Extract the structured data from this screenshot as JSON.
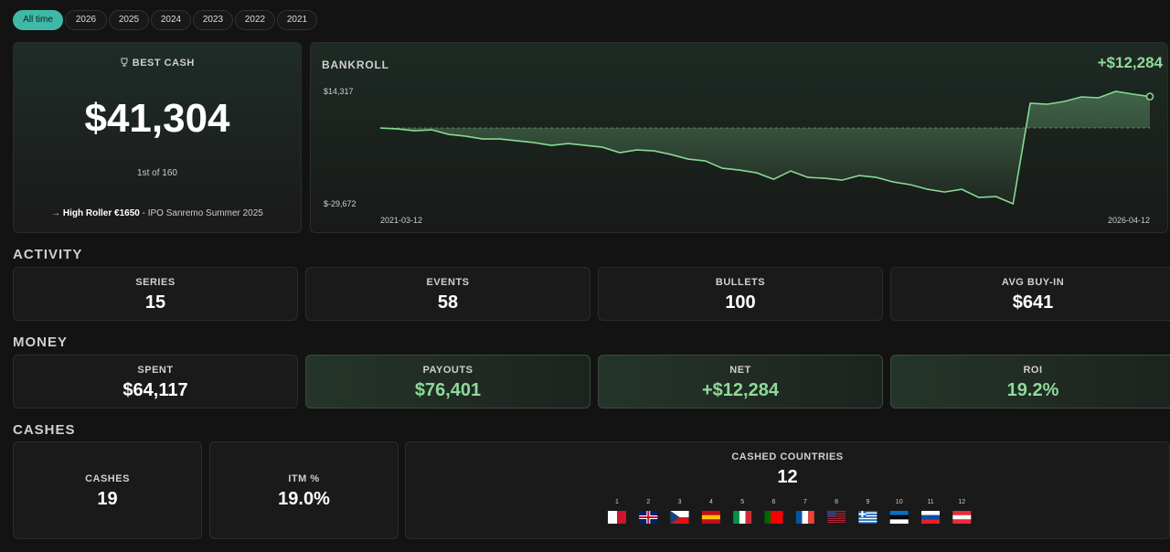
{
  "tabs": [
    "All time",
    "2026",
    "2025",
    "2024",
    "2023",
    "2022",
    "2021"
  ],
  "best_cash": {
    "title": "BEST CASH",
    "amount": "$41,304",
    "rank": "1st of 160",
    "event": "High Roller €1650",
    "series": "- IPO Sanremo Summer 2025"
  },
  "chart_data": {
    "type": "line",
    "title": "BANKROLL",
    "change": "+$12,284",
    "categories": [
      "2021-03-12",
      null,
      null,
      null,
      null,
      null,
      null,
      null,
      null,
      null,
      null,
      null,
      null,
      null,
      null,
      null,
      null,
      null,
      null,
      null,
      null,
      null,
      null,
      null,
      null,
      null,
      null,
      null,
      null,
      null,
      null,
      null,
      null,
      null,
      null,
      null,
      null,
      null,
      null,
      null,
      null,
      null,
      null,
      null,
      null,
      "2026-04-12"
    ],
    "values": [
      0,
      -358,
      -1074,
      -716,
      -2506,
      -3222,
      -4296,
      -4296,
      -5012,
      -5728,
      -6802,
      -6086,
      -6802,
      -7518,
      -9666,
      -8592,
      -8950,
      -10382,
      -12172,
      -12888,
      -15752,
      -16468,
      -17542,
      -20048,
      -16826,
      -19332,
      -19690,
      -20406,
      -18616,
      -19332,
      -21122,
      -22196,
      -23986,
      -25060,
      -23986,
      -27208,
      -26850,
      -29672,
      9666,
      9308,
      10382,
      12172,
      11814,
      14317,
      13246,
      12284
    ],
    "color": "#86d993",
    "ylim": [
      -29672,
      14317
    ],
    "yticks": [
      {
        "value": 14317,
        "label": "$14,317"
      },
      {
        "value": -29672,
        "label": "$-29,672"
      }
    ]
  },
  "activity": {
    "title": "ACTIVITY",
    "stats": [
      {
        "label": "SERIES",
        "value": "15"
      },
      {
        "label": "EVENTS",
        "value": "58"
      },
      {
        "label": "BULLETS",
        "value": "100"
      },
      {
        "label": "AVG BUY-IN",
        "value": "$641"
      }
    ]
  },
  "money": {
    "title": "MONEY",
    "stats": [
      {
        "label": "SPENT",
        "value": "$64,117"
      },
      {
        "label": "PAYOUTS",
        "value": "$76,401"
      },
      {
        "label": "NET",
        "value": "+$12,284"
      },
      {
        "label": "ROI",
        "value": "19.2%"
      }
    ]
  },
  "cashes": {
    "title": "CASHES",
    "stats": [
      {
        "label": "CASHES",
        "value": "19"
      },
      {
        "label": "ITM %",
        "value": "19.0%"
      }
    ],
    "countries": {
      "label": "CASHED COUNTRIES",
      "value": "12",
      "ranks": [
        1,
        2,
        3,
        4,
        5,
        6,
        7,
        8,
        9,
        10,
        11,
        12
      ]
    }
  }
}
